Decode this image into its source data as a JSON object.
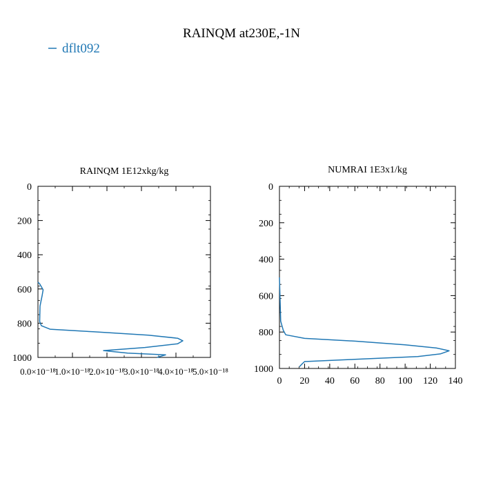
{
  "figure": {
    "title": "RAINQM at230E,-1N",
    "legend": {
      "label": "dflt092",
      "color": "#1f77b4"
    }
  },
  "chart_data": [
    {
      "type": "line",
      "title": "RAINQM  1E12xkg/kg",
      "xlabel": "",
      "ylabel": "",
      "xlim": [
        0,
        5e-18
      ],
      "ylim": [
        1000,
        0
      ],
      "x_tick_labels": [
        "0.0×10⁻¹⁸",
        "1.0×10⁻¹⁸",
        "2.0×10⁻¹⁸",
        "3.0×10⁻¹⁸",
        "4.0×10⁻¹⁸",
        "5.0×10⁻¹⁸"
      ],
      "x_ticks": [
        0,
        1e-18,
        2e-18,
        3e-18,
        4e-18,
        5e-18
      ],
      "y_tick_labels": [
        "0",
        "200",
        "400",
        "600",
        "800",
        "1000"
      ],
      "y_ticks": [
        0,
        200,
        400,
        600,
        800,
        1000
      ],
      "series": [
        {
          "name": "dflt092",
          "color": "#1f77b4",
          "x": [
            0,
            5e-20,
            1.5e-19,
            1.2e-19,
            6e-20,
            5e-20,
            1e-19,
            3.5e-19,
            1.6e-18,
            3.2e-18,
            4.05e-18,
            4.2e-18,
            4.05e-18,
            3.1e-18,
            1.9e-18,
            2.6e-18,
            3.7e-18,
            3.45e-18
          ],
          "y": [
            560,
            570,
            605,
            640,
            700,
            790,
            815,
            835,
            850,
            870,
            888,
            903,
            920,
            942,
            960,
            975,
            985,
            1000
          ]
        }
      ]
    },
    {
      "type": "line",
      "title": "NUMRAI  1E3x1/kg",
      "xlabel": "",
      "ylabel": "",
      "xlim": [
        0,
        140
      ],
      "ylim": [
        1000,
        0
      ],
      "x_tick_labels": [
        "0",
        "20",
        "40",
        "60",
        "80",
        "100",
        "120",
        "140"
      ],
      "x_ticks": [
        0,
        20,
        40,
        60,
        80,
        100,
        120,
        140
      ],
      "y_tick_labels": [
        "0",
        "200",
        "400",
        "600",
        "800",
        "1000"
      ],
      "y_ticks": [
        0,
        200,
        400,
        600,
        800,
        1000
      ],
      "series": [
        {
          "name": "dflt092",
          "color": "#1f77b4",
          "x": [
            0,
            1,
            3,
            5,
            20,
            60,
            100,
            125,
            135,
            128,
            110,
            60,
            20,
            18,
            16
          ],
          "y": [
            500,
            740,
            790,
            815,
            835,
            850,
            870,
            888,
            903,
            920,
            935,
            950,
            962,
            975,
            990
          ]
        }
      ]
    }
  ]
}
